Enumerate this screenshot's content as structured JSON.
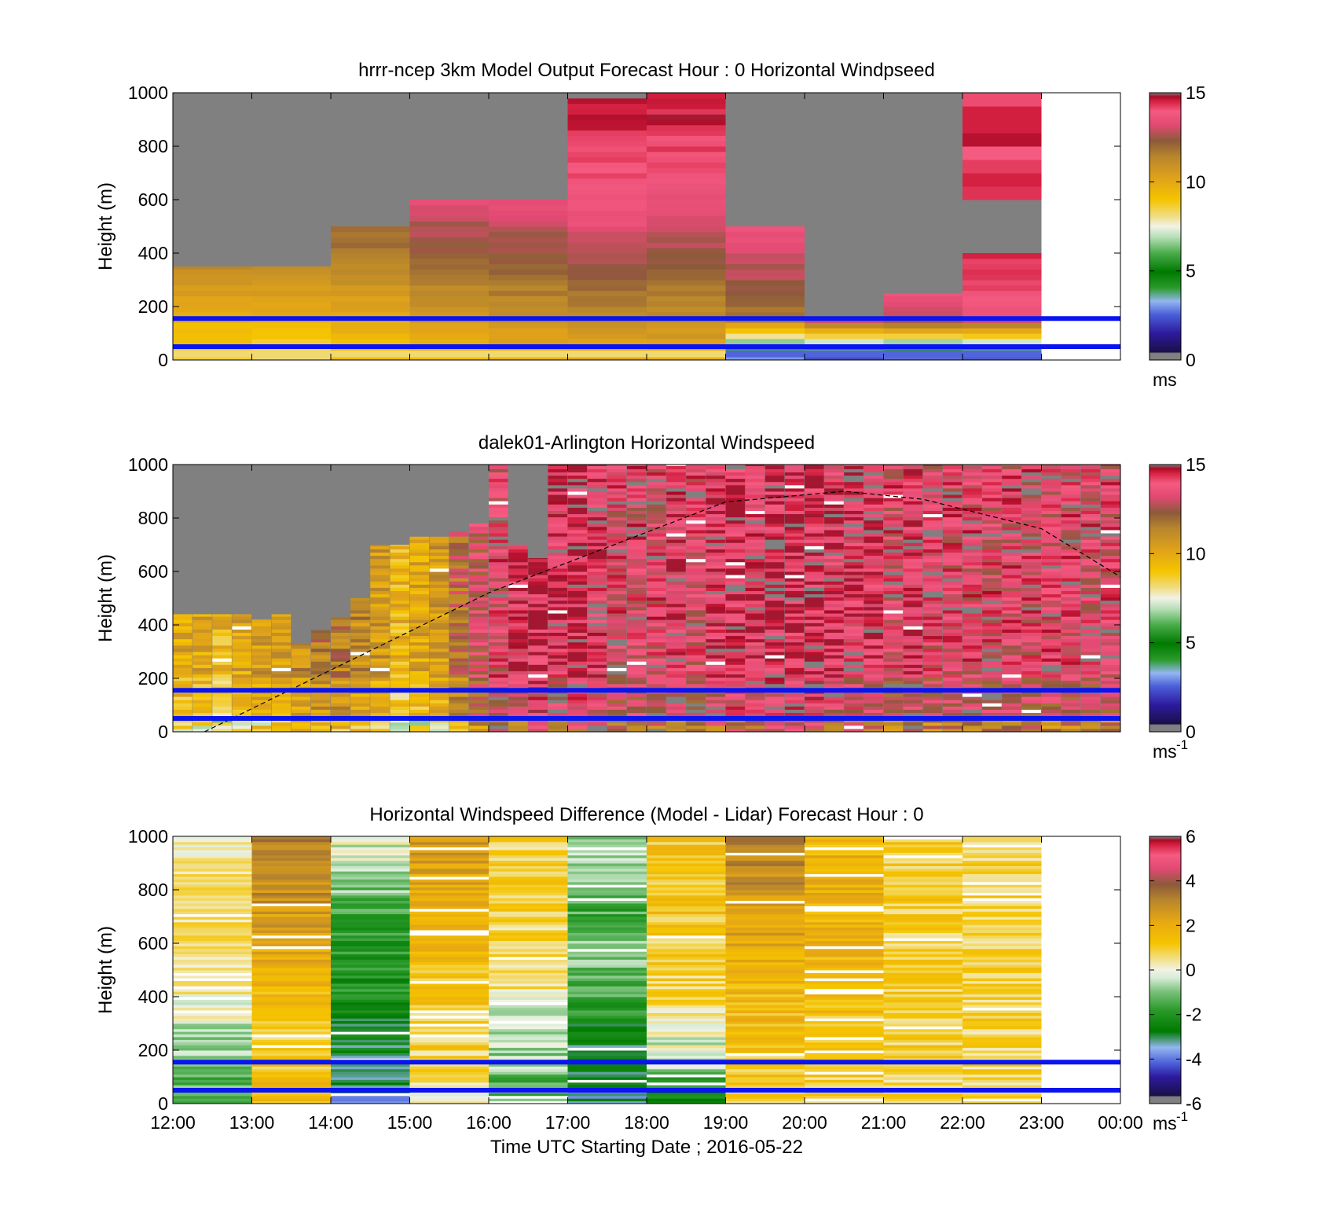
{
  "chart_data": [
    {
      "type": "heatmap",
      "title": "hrrr-ncep 3km Model Output   Forecast Hour : 0 Horizontal Windpseed",
      "ylabel": "Height (m)",
      "ylim": [
        0,
        1000
      ],
      "yticks": [
        "0",
        "200",
        "400",
        "600",
        "800",
        "1000"
      ],
      "xlim_hours": [
        12,
        24
      ],
      "colorbar": {
        "ticks": [
          "0",
          "5",
          "10",
          "15"
        ],
        "range": [
          0,
          15
        ],
        "unit": "ms",
        "unit_sup": ""
      },
      "hlines": [
        50,
        155
      ],
      "palette": "speed",
      "bin_hours": 1,
      "columns": [
        {
          "x": 12,
          "top": 350,
          "base": [
            8.5,
            9.5,
            10.8,
            11.8,
            12.8,
            13.6,
            14.2,
            14.6
          ]
        },
        {
          "x": 13,
          "top": 350,
          "base": [
            8.0,
            9.6,
            10.8,
            11.6,
            12.6,
            13.6,
            14.2,
            14.5
          ]
        },
        {
          "x": 14,
          "top": 500,
          "base": [
            9.0,
            9.8,
            11.0,
            11.8,
            12.6,
            13.4,
            14.0,
            14.6
          ]
        },
        {
          "x": 15,
          "top": 600,
          "base": [
            9.4,
            10.5,
            11.6,
            12.4,
            13.2,
            13.8,
            14.3,
            14.7
          ]
        },
        {
          "x": 16,
          "top": 600,
          "base": [
            9.5,
            10.8,
            11.8,
            12.6,
            13.2,
            13.8,
            14.3,
            14.7
          ]
        },
        {
          "x": 17,
          "top": 1000,
          "base": [
            9.8,
            11.0,
            12.2,
            13.0,
            13.6,
            14.1,
            14.5,
            14.8
          ]
        },
        {
          "x": 18,
          "top": 1000,
          "base": [
            9.8,
            11.0,
            11.8,
            12.8,
            13.4,
            13.9,
            14.4,
            14.8
          ]
        },
        {
          "x": 19,
          "top": 500,
          "base": [
            2.8,
            11.5,
            12.6,
            13.2,
            13.8,
            14.3,
            14.7,
            14.9
          ]
        },
        {
          "x": 20,
          "top": 150,
          "base": [
            2.5,
            13.0,
            13.8,
            14.3,
            14.6,
            14.8,
            14.9,
            14.9
          ]
        },
        {
          "x": 21,
          "top": 250,
          "base": [
            2.5,
            13.0,
            14.0,
            14.5,
            14.7,
            14.8,
            14.9,
            14.9
          ]
        },
        {
          "x": 22,
          "top": 400,
          "band": [
            600,
            1000
          ],
          "base": [
            2.5,
            13.4,
            14.2,
            14.6,
            14.8,
            14.9,
            14.9,
            14.9
          ]
        }
      ],
      "notes": [
        "gray = above model top / no data"
      ]
    },
    {
      "type": "heatmap",
      "title": "dalek01-Arlington  Horizontal Windspeed",
      "ylabel": "Height (m)",
      "ylim": [
        0,
        1000
      ],
      "yticks": [
        "0",
        "200",
        "400",
        "600",
        "800",
        "1000"
      ],
      "xlim_hours": [
        12,
        24
      ],
      "colorbar": {
        "ticks": [
          "0",
          "5",
          "10",
          "15"
        ],
        "range": [
          0,
          15
        ],
        "unit": "ms",
        "unit_sup": "-1"
      },
      "hlines": [
        50,
        155
      ],
      "palette": "speed",
      "bin_hours": 0.25,
      "sun_curve": {
        "x_hours": [
          12.4,
          16.0,
          19.0,
          20.5,
          21.5,
          23.0,
          24.0
        ],
        "y": [
          0,
          520,
          860,
          900,
          870,
          760,
          580
        ]
      },
      "column_tops": [
        440,
        440,
        440,
        440,
        420,
        440,
        330,
        380,
        430,
        500,
        700,
        700,
        730,
        730,
        750,
        780,
        1000,
        700,
        650,
        1000,
        1000,
        1000,
        1000,
        1000,
        1000,
        1000,
        1000,
        1000,
        1000,
        1000,
        1000,
        1000,
        1000,
        1000,
        1000,
        1000,
        1000,
        1000,
        1000,
        1000,
        1000,
        1000,
        1000,
        1000,
        1000,
        1000,
        1000,
        1000
      ],
      "column_base": [
        9.0,
        9.0,
        8.5,
        9.0,
        9.5,
        9.5,
        10.0,
        10.5,
        10.5,
        10.0,
        9.5,
        8.5,
        9.0,
        9.5,
        11.0,
        12.0,
        12.5,
        13.0,
        13.5,
        13.0,
        13.5,
        13.0,
        12.5,
        12.5,
        12.5,
        13.0,
        12.5,
        13.0,
        13.5,
        13.0,
        13.5,
        13.5,
        13.5,
        13.0,
        13.0,
        13.0,
        12.5,
        13.0,
        12.5,
        12.5,
        12.5,
        12.5,
        12.5,
        12.5,
        12.5,
        12.5,
        12.5,
        12.5
      ]
    },
    {
      "type": "heatmap",
      "title": "Horizontal Windspeed Difference (Model - Lidar) Forecast Hour : 0",
      "xlabel": "Time UTC  Starting Date ; 2016-05-22",
      "ylabel": "Height (m)",
      "ylim": [
        0,
        1000
      ],
      "yticks": [
        "0",
        "200",
        "400",
        "600",
        "800",
        "1000"
      ],
      "xticks": [
        "12:00",
        "13:00",
        "14:00",
        "15:00",
        "16:00",
        "17:00",
        "18:00",
        "19:00",
        "20:00",
        "21:00",
        "22:00",
        "23:00",
        "00:00"
      ],
      "xlim_hours": [
        12,
        24
      ],
      "colorbar": {
        "ticks": [
          "-6",
          "-4",
          "-2",
          "0",
          "2",
          "4",
          "6"
        ],
        "range": [
          -6,
          6
        ],
        "unit": "ms",
        "unit_sup": "-1"
      },
      "hlines": [
        50,
        155
      ],
      "palette": "diff",
      "bin_hours": 1,
      "columns": [
        {
          "x": 12,
          "base": [
            -1.4,
            -1.0,
            -0.4,
            0.4,
            0.6,
            0.4,
            0.4,
            0.3
          ]
        },
        {
          "x": 13,
          "base": [
            1.4,
            1.2,
            1.0,
            1.6,
            2.0,
            2.6,
            2.9,
            3.0
          ]
        },
        {
          "x": 14,
          "base": [
            -3.5,
            -3.0,
            -2.5,
            -2.0,
            -1.8,
            -1.5,
            -0.6,
            -0.2
          ]
        },
        {
          "x": 15,
          "base": [
            0.2,
            0.8,
            1.0,
            1.2,
            1.5,
            1.8,
            2.2,
            2.6
          ]
        },
        {
          "x": 16,
          "base": [
            -1.6,
            -0.8,
            -0.5,
            0.5,
            0.8,
            0.8,
            1.0,
            0.8
          ]
        },
        {
          "x": 17,
          "base": [
            -3.5,
            -3.0,
            -2.5,
            -1.2,
            -0.8,
            -1.5,
            -1.0,
            -0.6
          ]
        },
        {
          "x": 18,
          "base": [
            -3.0,
            -0.6,
            0.2,
            0.8,
            1.0,
            1.2,
            1.2,
            1.2
          ]
        },
        {
          "x": 19,
          "base": [
            0.8,
            1.2,
            1.5,
            1.6,
            2.0,
            2.4,
            3.0,
            3.2
          ]
        },
        {
          "x": 20,
          "base": [
            0.8,
            1.0,
            1.2,
            1.4,
            1.8,
            1.8,
            1.8,
            1.6
          ]
        },
        {
          "x": 21,
          "base": [
            0.8,
            0.8,
            1.0,
            1.0,
            1.0,
            1.0,
            1.0,
            1.1
          ]
        },
        {
          "x": 22,
          "base": [
            0.5,
            0.8,
            0.8,
            0.9,
            0.9,
            0.9,
            0.8,
            0.8
          ]
        }
      ]
    }
  ]
}
